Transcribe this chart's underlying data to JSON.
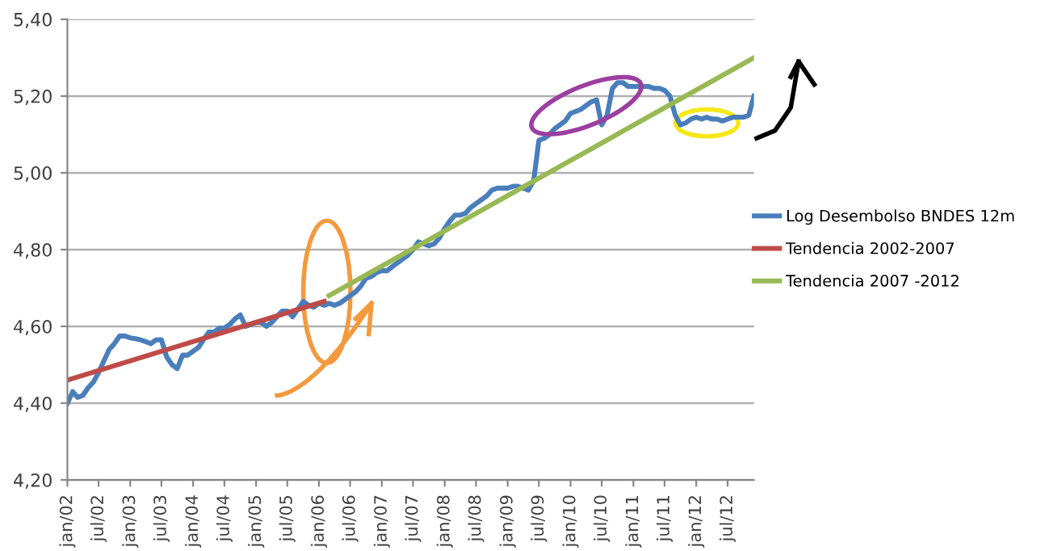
{
  "chart_data": {
    "type": "line",
    "x": [
      "2002-01",
      "2002-02",
      "2002-03",
      "2002-04",
      "2002-05",
      "2002-06",
      "2002-07",
      "2002-08",
      "2002-09",
      "2002-10",
      "2002-11",
      "2002-12",
      "2003-01",
      "2003-02",
      "2003-03",
      "2003-04",
      "2003-05",
      "2003-06",
      "2003-07",
      "2003-08",
      "2003-09",
      "2003-10",
      "2003-11",
      "2003-12",
      "2004-01",
      "2004-02",
      "2004-03",
      "2004-04",
      "2004-05",
      "2004-06",
      "2004-07",
      "2004-08",
      "2004-09",
      "2004-10",
      "2004-11",
      "2004-12",
      "2005-01",
      "2005-02",
      "2005-03",
      "2005-04",
      "2005-05",
      "2005-06",
      "2005-07",
      "2005-08",
      "2005-09",
      "2005-10",
      "2005-11",
      "2005-12",
      "2006-01",
      "2006-02",
      "2006-03",
      "2006-04",
      "2006-05",
      "2006-06",
      "2006-07",
      "2006-08",
      "2006-09",
      "2006-10",
      "2006-11",
      "2006-12",
      "2007-01",
      "2007-02",
      "2007-03",
      "2007-04",
      "2007-05",
      "2007-06",
      "2007-07",
      "2007-08",
      "2007-09",
      "2007-10",
      "2007-11",
      "2007-12",
      "2008-01",
      "2008-02",
      "2008-03",
      "2008-04",
      "2008-05",
      "2008-06",
      "2008-07",
      "2008-08",
      "2008-09",
      "2008-10",
      "2008-11",
      "2008-12",
      "2009-01",
      "2009-02",
      "2009-03",
      "2009-04",
      "2009-05",
      "2009-06",
      "2009-07",
      "2009-08",
      "2009-09",
      "2009-10",
      "2009-11",
      "2009-12",
      "2010-01",
      "2010-02",
      "2010-03",
      "2010-04",
      "2010-05",
      "2010-06",
      "2010-07",
      "2010-08",
      "2010-09",
      "2010-10",
      "2010-11",
      "2010-12",
      "2011-01",
      "2011-02",
      "2011-03",
      "2011-04",
      "2011-05",
      "2011-06",
      "2011-07",
      "2011-08",
      "2011-09",
      "2011-10",
      "2011-11",
      "2011-12",
      "2012-01",
      "2012-02",
      "2012-03",
      "2012-04",
      "2012-05",
      "2012-06",
      "2012-07",
      "2012-08",
      "2012-09",
      "2012-10",
      "2012-11",
      "2012-12"
    ],
    "series": [
      {
        "name": "Log Desembolso BNDES 12m",
        "color": "#4a7ebb",
        "values": [
          4.4,
          4.43,
          4.415,
          4.42,
          4.44,
          4.455,
          4.48,
          4.51,
          4.54,
          4.555,
          4.575,
          4.575,
          4.57,
          4.568,
          4.565,
          4.56,
          4.555,
          4.565,
          4.565,
          4.52,
          4.5,
          4.49,
          4.525,
          4.525,
          4.535,
          4.545,
          4.565,
          4.585,
          4.585,
          4.595,
          4.595,
          4.605,
          4.62,
          4.63,
          4.6,
          4.605,
          4.61,
          4.61,
          4.6,
          4.61,
          4.625,
          4.64,
          4.64,
          4.625,
          4.645,
          4.665,
          4.655,
          4.65,
          4.66,
          4.655,
          4.66,
          4.655,
          4.66,
          4.67,
          4.68,
          4.69,
          4.705,
          4.725,
          4.73,
          4.74,
          4.745,
          4.745,
          4.755,
          4.765,
          4.775,
          4.785,
          4.8,
          4.82,
          4.815,
          4.81,
          4.815,
          4.83,
          4.855,
          4.875,
          4.89,
          4.89,
          4.895,
          4.91,
          4.92,
          4.93,
          4.94,
          4.955,
          4.96,
          4.96,
          4.96,
          4.965,
          4.965,
          4.96,
          4.955,
          4.98,
          5.085,
          5.09,
          5.1,
          5.115,
          5.125,
          5.135,
          5.155,
          5.16,
          5.165,
          5.175,
          5.185,
          5.19,
          5.125,
          5.15,
          5.22,
          5.235,
          5.235,
          5.225,
          5.225,
          5.225,
          5.225,
          5.225,
          5.22,
          5.22,
          5.215,
          5.2,
          5.15,
          5.125,
          5.13,
          5.14,
          5.145,
          5.14,
          5.145,
          5.14,
          5.14,
          5.135,
          5.14,
          5.145,
          5.145,
          5.145,
          5.15,
          5.2
        ]
      },
      {
        "name": "Tendencia 2002-2007",
        "color": "#be4b48",
        "x": [
          "2002-01",
          "2006-02"
        ],
        "values": [
          4.46,
          4.665
        ]
      },
      {
        "name": "Tendencia 2007 -2012",
        "color": "#98b954",
        "x": [
          "2006-03",
          "2012-12"
        ],
        "values": [
          4.68,
          5.3
        ]
      }
    ],
    "xlim": [
      "2002-01",
      "2012-12"
    ],
    "xticks": [
      {
        "value": "2002-01",
        "label": "jan/02"
      },
      {
        "value": "2002-07",
        "label": "jul/02"
      },
      {
        "value": "2003-01",
        "label": "jan/03"
      },
      {
        "value": "2003-07",
        "label": "jul/03"
      },
      {
        "value": "2004-01",
        "label": "jan/04"
      },
      {
        "value": "2004-07",
        "label": "jul/04"
      },
      {
        "value": "2005-01",
        "label": "jan/05"
      },
      {
        "value": "2005-07",
        "label": "jul/05"
      },
      {
        "value": "2006-01",
        "label": "jan/06"
      },
      {
        "value": "2006-07",
        "label": "jul/06"
      },
      {
        "value": "2007-01",
        "label": "jan/07"
      },
      {
        "value": "2007-07",
        "label": "jul/07"
      },
      {
        "value": "2008-01",
        "label": "jan/08"
      },
      {
        "value": "2008-07",
        "label": "jul/08"
      },
      {
        "value": "2009-01",
        "label": "jan/09"
      },
      {
        "value": "2009-07",
        "label": "jul/09"
      },
      {
        "value": "2010-01",
        "label": "jan/10"
      },
      {
        "value": "2010-07",
        "label": "jul/10"
      },
      {
        "value": "2011-01",
        "label": "jan/11"
      },
      {
        "value": "2011-07",
        "label": "jul/11"
      },
      {
        "value": "2012-01",
        "label": "jan/12"
      },
      {
        "value": "2012-07",
        "label": "jul/12"
      }
    ],
    "ylim": [
      4.2,
      5.4
    ],
    "yticks": [
      {
        "value": 4.2,
        "label": "4,20"
      },
      {
        "value": 4.4,
        "label": "4,40"
      },
      {
        "value": 4.6,
        "label": "4,60"
      },
      {
        "value": 4.8,
        "label": "4,80"
      },
      {
        "value": 5.0,
        "label": "5,00"
      },
      {
        "value": 5.2,
        "label": "5,20"
      },
      {
        "value": 5.4,
        "label": "5,40"
      }
    ],
    "grid": "y",
    "legend": "right"
  }
}
